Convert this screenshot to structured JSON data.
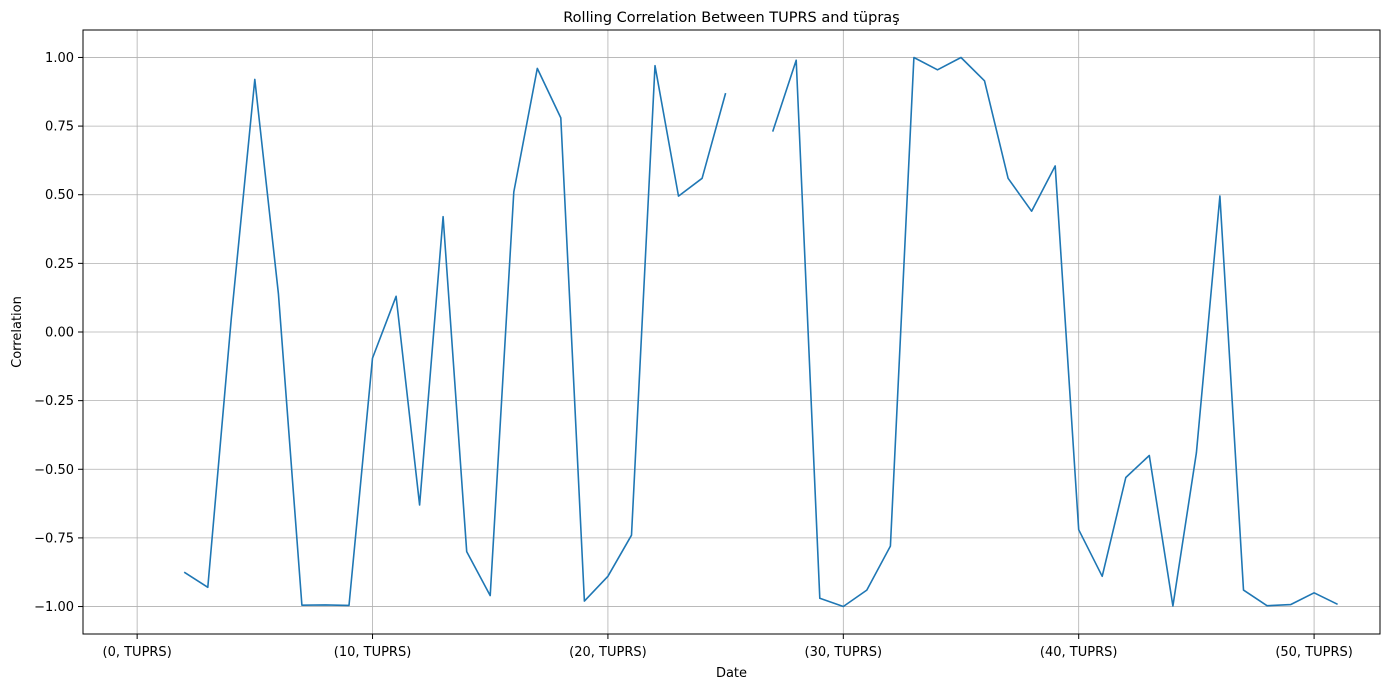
{
  "chart_data": {
    "type": "line",
    "title": "Rolling Correlation Between TUPRS and tüpraş",
    "xlabel": "Date",
    "ylabel": "Correlation",
    "xlim": [
      -2.3,
      52.8
    ],
    "ylim": [
      -1.1,
      1.1
    ],
    "grid": true,
    "colors": {
      "line": "#1f77b4",
      "grid": "#b0b0b0"
    },
    "x_ticks": [
      {
        "value": 0,
        "label": "(0, TUPRS)"
      },
      {
        "value": 10,
        "label": "(10, TUPRS)"
      },
      {
        "value": 20,
        "label": "(20, TUPRS)"
      },
      {
        "value": 30,
        "label": "(30, TUPRS)"
      },
      {
        "value": 40,
        "label": "(40, TUPRS)"
      },
      {
        "value": 50,
        "label": "(50, TUPRS)"
      }
    ],
    "y_ticks": [
      {
        "value": 1.0,
        "label": "1.00"
      },
      {
        "value": 0.75,
        "label": "0.75"
      },
      {
        "value": 0.5,
        "label": "0.50"
      },
      {
        "value": 0.25,
        "label": "0.25"
      },
      {
        "value": 0.0,
        "label": "0.00"
      },
      {
        "value": -0.25,
        "label": "−0.25"
      },
      {
        "value": -0.5,
        "label": "−0.50"
      },
      {
        "value": -0.75,
        "label": "−0.75"
      },
      {
        "value": -1.0,
        "label": "−1.00"
      }
    ],
    "series": [
      {
        "x": [
          2,
          3,
          4,
          5,
          6,
          7,
          8,
          9,
          10,
          11,
          12,
          13,
          14,
          15,
          16,
          17,
          18,
          19,
          20,
          21,
          22,
          23,
          24,
          25,
          26,
          27,
          28,
          29,
          30,
          31,
          32,
          33,
          34,
          35,
          36,
          37,
          38,
          39,
          40,
          41,
          42,
          43,
          44,
          45,
          46,
          47,
          48,
          49,
          50,
          51
        ],
        "y": [
          -0.875,
          -0.93,
          0.05,
          0.92,
          0.14,
          -0.995,
          -0.994,
          -0.996,
          -0.095,
          0.13,
          -0.63,
          0.42,
          -0.8,
          -0.96,
          0.51,
          0.96,
          0.78,
          -0.98,
          -0.89,
          -0.74,
          0.97,
          0.495,
          0.56,
          0.87,
          null,
          0.73,
          0.99,
          -0.97,
          -1.0,
          -0.94,
          -0.78,
          1.0,
          0.955,
          1.0,
          0.915,
          0.56,
          0.44,
          0.605,
          -0.72,
          -0.89,
          -0.53,
          -0.45,
          -0.998,
          -0.44,
          0.495,
          -0.94,
          -0.997,
          -0.993,
          -0.95,
          -0.992
        ]
      }
    ]
  }
}
